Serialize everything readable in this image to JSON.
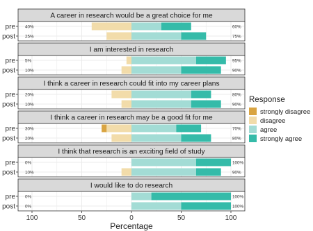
{
  "chart_data": {
    "type": "bar",
    "subtype": "diverging-stacked-likert",
    "xlabel": "Percentage",
    "ylabel": "",
    "xlim": [
      -100,
      100
    ],
    "x_ticks": [
      "100",
      "50",
      "0",
      "50",
      "100"
    ],
    "grid": true,
    "legend": {
      "title": "Response",
      "position": "right",
      "entries": [
        "strongly disagree",
        "disagree",
        "agree",
        "strongly agree"
      ]
    },
    "colors": {
      "strongly disagree": "#d9a441",
      "disagree": "#f2dcaa",
      "agree": "#a3dcd5",
      "strongly agree": "#35bba9",
      "panel_strip": "#d9d9d9",
      "panel_bg": "#ffffff",
      "grid": "#ebebeb"
    },
    "panels": [
      {
        "title": "A career in research would be a great choice for me",
        "rows": [
          {
            "label": "pre",
            "left_pct": "40%",
            "right_pct": "60%",
            "strongly_disagree": 0,
            "disagree": 40,
            "agree": 30,
            "strongly_agree": 30
          },
          {
            "label": "post",
            "left_pct": "25%",
            "right_pct": "75%",
            "strongly_disagree": 0,
            "disagree": 25,
            "agree": 50,
            "strongly_agree": 25
          }
        ]
      },
      {
        "title": "I am interested in research",
        "rows": [
          {
            "label": "pre",
            "left_pct": "5%",
            "right_pct": "95%",
            "strongly_disagree": 0,
            "disagree": 5,
            "agree": 65,
            "strongly_agree": 30
          },
          {
            "label": "post",
            "left_pct": "10%",
            "right_pct": "90%",
            "strongly_disagree": 0,
            "disagree": 10,
            "agree": 50,
            "strongly_agree": 40
          }
        ]
      },
      {
        "title": "I think a career in research could fit into my career plans",
        "rows": [
          {
            "label": "pre",
            "left_pct": "20%",
            "right_pct": "80%",
            "strongly_disagree": 0,
            "disagree": 20,
            "agree": 60,
            "strongly_agree": 20
          },
          {
            "label": "post",
            "left_pct": "10%",
            "right_pct": "90%",
            "strongly_disagree": 0,
            "disagree": 10,
            "agree": 60,
            "strongly_agree": 30
          }
        ]
      },
      {
        "title": "I think a career in research may be a good fit for me",
        "rows": [
          {
            "label": "pre",
            "left_pct": "30%",
            "right_pct": "70%",
            "strongly_disagree": 5,
            "disagree": 25,
            "agree": 45,
            "strongly_agree": 25
          },
          {
            "label": "post",
            "left_pct": "20%",
            "right_pct": "80%",
            "strongly_disagree": 0,
            "disagree": 20,
            "agree": 50,
            "strongly_agree": 30
          }
        ]
      },
      {
        "title": "I think that research is an exciting field of study",
        "rows": [
          {
            "label": "pre",
            "left_pct": "0%",
            "right_pct": "100%",
            "strongly_disagree": 0,
            "disagree": 0,
            "agree": 65,
            "strongly_agree": 35
          },
          {
            "label": "post",
            "left_pct": "10%",
            "right_pct": "90%",
            "strongly_disagree": 0,
            "disagree": 10,
            "agree": 65,
            "strongly_agree": 25
          }
        ]
      },
      {
        "title": "I would like to do research",
        "rows": [
          {
            "label": "pre",
            "left_pct": "0%",
            "right_pct": "100%",
            "strongly_disagree": 0,
            "disagree": 0,
            "agree": 20,
            "strongly_agree": 80
          },
          {
            "label": "post",
            "left_pct": "0%",
            "right_pct": "100%",
            "strongly_disagree": 0,
            "disagree": 0,
            "agree": 50,
            "strongly_agree": 50
          }
        ]
      }
    ]
  }
}
